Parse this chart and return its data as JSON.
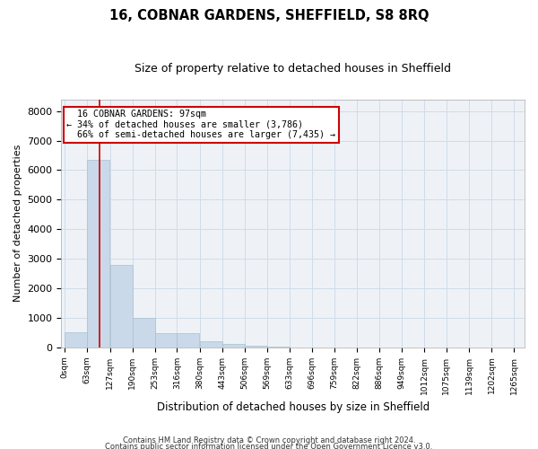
{
  "title": "16, COBNAR GARDENS, SHEFFIELD, S8 8RQ",
  "subtitle": "Size of property relative to detached houses in Sheffield",
  "xlabel": "Distribution of detached houses by size in Sheffield",
  "ylabel": "Number of detached properties",
  "property_label": "16 COBNAR GARDENS: 97sqm",
  "pct_smaller": 34,
  "count_smaller": "3,786",
  "pct_larger_semi": 66,
  "count_larger_semi": "7,435",
  "bin_labels": [
    "0sqm",
    "63sqm",
    "127sqm",
    "190sqm",
    "253sqm",
    "316sqm",
    "380sqm",
    "443sqm",
    "506sqm",
    "569sqm",
    "633sqm",
    "696sqm",
    "759sqm",
    "822sqm",
    "886sqm",
    "949sqm",
    "1012sqm",
    "1075sqm",
    "1139sqm",
    "1202sqm",
    "1265sqm"
  ],
  "bin_edges": [
    0,
    63,
    127,
    190,
    253,
    316,
    380,
    443,
    506,
    569,
    633,
    696,
    759,
    822,
    886,
    949,
    1012,
    1075,
    1139,
    1202,
    1265
  ],
  "bar_heights": [
    500,
    6350,
    2800,
    1000,
    480,
    480,
    200,
    120,
    60,
    20,
    8,
    4,
    2,
    1,
    1,
    0,
    0,
    0,
    0,
    0
  ],
  "bar_color": "#c9d9e9",
  "bar_edge_color": "#a8bfcf",
  "vline_color": "#cc0000",
  "vline_x": 97,
  "ylim": [
    0,
    8400
  ],
  "yticks": [
    0,
    1000,
    2000,
    3000,
    4000,
    5000,
    6000,
    7000,
    8000
  ],
  "grid_color": "#d0dce8",
  "background_color": "#eef2f7",
  "footer1": "Contains HM Land Registry data © Crown copyright and database right 2024.",
  "footer2": "Contains public sector information licensed under the Open Government Licence v3.0.",
  "annotation_box_color": "#cc0000",
  "figsize": [
    6.0,
    5.0
  ],
  "dpi": 100
}
